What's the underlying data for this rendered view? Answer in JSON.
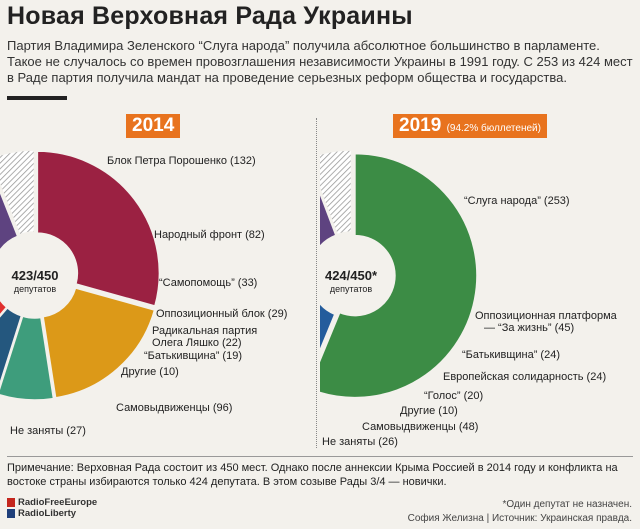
{
  "title": "Новая Верховная Рада Украины",
  "lead": "Партия Владимира Зеленского “Слуга народа” получила абсолютное большинство в парламенте. Такое не случалось со времен провозглашения независимости Украины в 1991 году. С 253 из 424 мест в Раде партия получила мандат на проведение серьезных реформ общества и государства.",
  "colors": {
    "accent": "#e8731e",
    "background": "#f3f1ec"
  },
  "chart_data": [
    {
      "type": "pie",
      "title": "2014",
      "center_value": "423/450",
      "center_label": "депутатов",
      "total_seats": 450,
      "slices": [
        {
          "label": "Блок Петра Порошенко (132)",
          "value": 132,
          "color": "#9b2142"
        },
        {
          "label": "Народный фронт (82)",
          "value": 82,
          "color": "#dc9918"
        },
        {
          "label": "“Самопомощь” (33)",
          "value": 33,
          "color": "#3e9d7c"
        },
        {
          "label": "Оппозиционный блок (29)",
          "value": 29,
          "color": "#24577e"
        },
        {
          "label": "Радикальная партия Олега Ляшко (22)",
          "value": 22,
          "color": "#e0302e"
        },
        {
          "label": "“Батькивщина” (19)",
          "value": 19,
          "color": "#c9184f"
        },
        {
          "label": "Другие (10)",
          "value": 10,
          "color": "#7b7b7b"
        },
        {
          "label": "Самовыдвиженцы (96)",
          "value": 96,
          "color": "#5e4380"
        },
        {
          "label": "Не заняты (27)",
          "value": 27,
          "color": "hatch"
        }
      ]
    },
    {
      "type": "pie",
      "title": "2019",
      "subtitle": "(94.2% бюллетеней)",
      "center_value": "424/450*",
      "center_label": "депутатов",
      "total_seats": 450,
      "slices": [
        {
          "label": "“Слуга народа” (253)",
          "value": 253,
          "color": "#3c8c45"
        },
        {
          "label": "Оппозиционная платформа — “За жизнь” (45)",
          "value": 45,
          "color": "#245c9c"
        },
        {
          "label": "“Батькивщина” (24)",
          "value": 24,
          "color": "#c9184f"
        },
        {
          "label": "Европейская солидарность (24)",
          "value": 24,
          "color": "#3b8fd8"
        },
        {
          "label": "“Голос” (20)",
          "value": 20,
          "color": "#e88a16"
        },
        {
          "label": "Другие (10)",
          "value": 10,
          "color": "#7b7b7b"
        },
        {
          "label": "Самовыдвиженцы (48)",
          "value": 48,
          "color": "#5e4380"
        },
        {
          "label": "Не заняты (26)",
          "value": 26,
          "color": "hatch"
        }
      ]
    }
  ],
  "labels_2014": {
    "poroshenko": "Блок Петра Порошенко (132)",
    "front": "Народный фронт (82)",
    "samopomich": "“Самопомощь” (33)",
    "opposition": "Оппозиционный блок (29)",
    "radical1": "Радикальная партия",
    "radical2": "Олега Ляшко (22)",
    "batkivshchyna": "“Батькивщина” (19)",
    "others": "Другие (10)",
    "independents": "Самовыдвиженцы (96)",
    "vacant": "Не заняты (27)"
  },
  "labels_2019": {
    "servant": "“Слуга народа” (253)",
    "platform1": "Оппозиционная платформа",
    "platform2": "— “За жизнь” (45)",
    "batkivshchyna": "“Батькивщина” (24)",
    "eurosol": "Европейская солидарность (24)",
    "holos": "“Голос” (20)",
    "others": "Другие (10)",
    "independents": "Самовыдвиженцы (48)",
    "vacant": "Не заняты (26)"
  },
  "footnote": "Примечание: Верховная Рада состоит из 450 мест. Однако после аннексии Крыма Россией в 2014 году и конфликта на востоке страны избираются только 424 депутата. В этом созыве Рады 3/4 — новички.",
  "brand_line1": "RadioFreeEurope",
  "brand_line2": "RadioLiberty",
  "asterisk_note": "*Один депутат не назначен.",
  "credit": "София Желизна | Источник: Украинская правда."
}
